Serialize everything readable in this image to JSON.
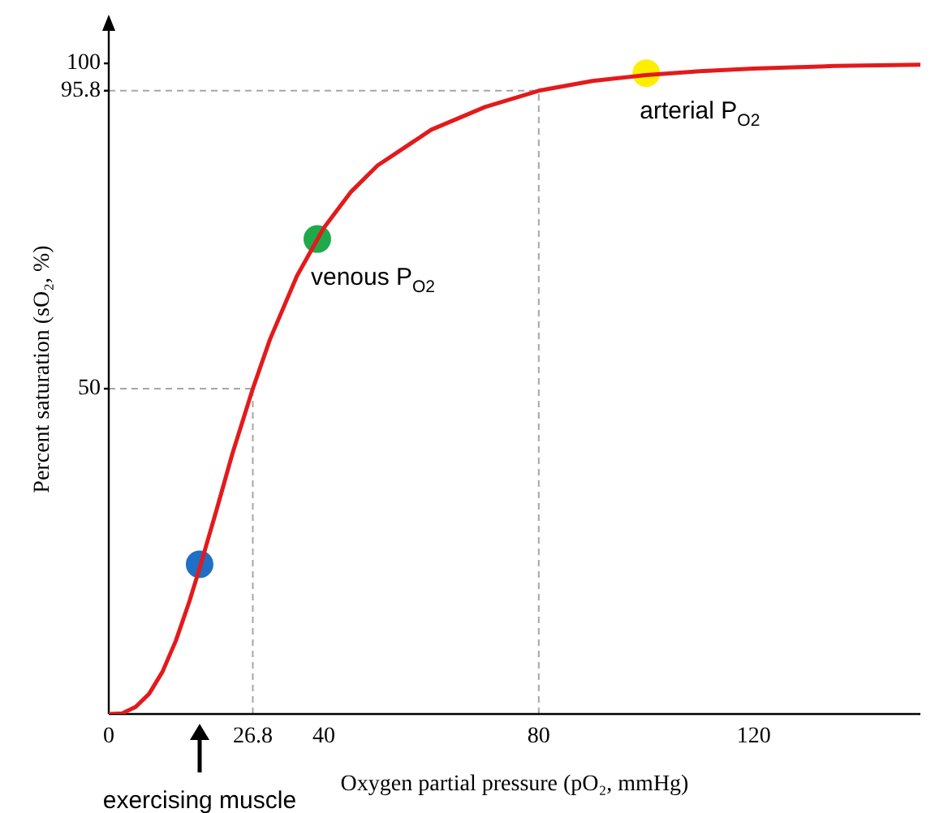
{
  "chart_data": {
    "type": "line",
    "xlabel": "Oxygen partial pressure (pO₂, mmHg)",
    "ylabel": "Percent saturation (sO₂, %)",
    "xlim": [
      0,
      151
    ],
    "ylim": [
      0,
      106
    ],
    "xticks": [
      0,
      26.8,
      40,
      80,
      120
    ],
    "yticks": [
      50,
      95.8,
      100
    ],
    "grid": false,
    "legend": false,
    "series": [
      {
        "type": "line",
        "color": "#e31a1c",
        "x": [
          0,
          2.5,
          5,
          7.5,
          10,
          12.5,
          15,
          16.9,
          20,
          23,
          26.8,
          30,
          35,
          40,
          45,
          50,
          60,
          70,
          80,
          90,
          100,
          110,
          120,
          135,
          151
        ],
        "values": [
          0,
          0.1,
          1.1,
          3.1,
          6.5,
          11.3,
          17.3,
          22.4,
          31.2,
          40,
          50,
          57.6,
          67.3,
          74.7,
          80.2,
          84.3,
          89.8,
          93.3,
          95.8,
          97.3,
          98.2,
          98.8,
          99.2,
          99.6,
          99.8
        ]
      },
      {
        "type": "scatter",
        "x": [
          16.9,
          38.8,
          100
        ],
        "values": [
          23,
          73,
          98.5
        ],
        "colors": [
          "#1f6fc5",
          "#1eaa4b",
          "#ffee00"
        ],
        "marker": "circle"
      }
    ],
    "ref_lines": [
      {
        "axis": "x",
        "value": 26.8,
        "color": "#a6a6a6",
        "line_style": "dashed"
      },
      {
        "axis": "y",
        "value": 50,
        "color": "#a6a6a6",
        "line_style": "dashed"
      },
      {
        "axis": "x",
        "value": 80,
        "color": "#a6a6a6",
        "line_style": "dashed"
      },
      {
        "axis": "y",
        "value": 95.8,
        "color": "#a6a6a6",
        "line_style": "dashed"
      }
    ],
    "annotations": [
      {
        "text": "venous P$_{O2}$",
        "x": 38.8,
        "y": 73
      },
      {
        "text": "arterial P$_{O2}$",
        "x": 100,
        "y": 98.5
      },
      "exercising muscle"
    ]
  }
}
